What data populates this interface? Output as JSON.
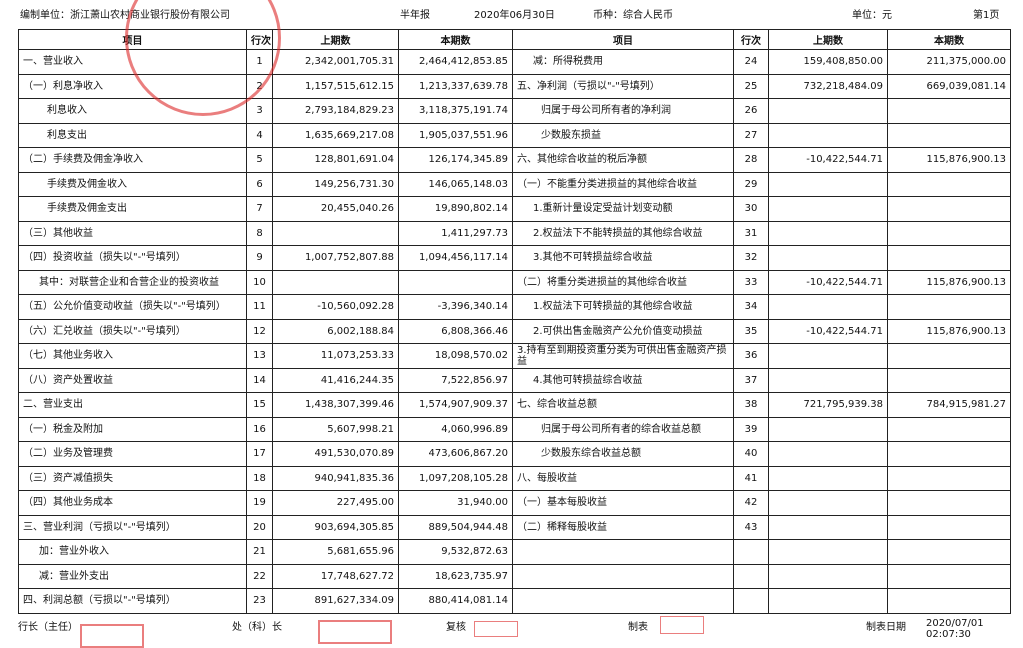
{
  "header": {
    "unit_name": "编制单位：浙江萧山农村商业银行股份有限公司",
    "report_type": "半年报",
    "date": "2020年06月30日",
    "currency": "币种：综合人民币",
    "unit": "单位：元",
    "page": "第1页"
  },
  "table": {
    "columns": [
      "项目",
      "行次",
      "上期数",
      "本期数"
    ],
    "left_rows": [
      {
        "item": "一、营业收入",
        "line": "1",
        "prev": "2,342,001,705.31",
        "curr": "2,464,412,853.85"
      },
      {
        "item": "（一）利息净收入",
        "line": "2",
        "prev": "1,157,515,612.15",
        "curr": "1,213,337,639.78"
      },
      {
        "item": "利息收入",
        "line": "3",
        "prev": "2,793,184,829.23",
        "curr": "3,118,375,191.74"
      },
      {
        "item": "利息支出",
        "line": "4",
        "prev": "1,635,669,217.08",
        "curr": "1,905,037,551.96"
      },
      {
        "item": "（二）手续费及佣金净收入",
        "line": "5",
        "prev": "128,801,691.04",
        "curr": "126,174,345.89"
      },
      {
        "item": "手续费及佣金收入",
        "line": "6",
        "prev": "149,256,731.30",
        "curr": "146,065,148.03"
      },
      {
        "item": "手续费及佣金支出",
        "line": "7",
        "prev": "20,455,040.26",
        "curr": "19,890,802.14"
      },
      {
        "item": "（三）其他收益",
        "line": "8",
        "curr": "1,411,297.73"
      },
      {
        "item": "（四）投资收益（损失以\"-\"号填列）",
        "line": "9",
        "prev": "1,007,752,807.88",
        "curr": "1,094,456,117.14"
      },
      {
        "item": "其中：对联营企业和合营企业的投资收益",
        "line": "10"
      },
      {
        "item": "（五）公允价值变动收益（损失以\"-\"号填列）",
        "line": "11",
        "prev": "-10,560,092.28",
        "curr": "-3,396,340.14"
      },
      {
        "item": "（六）汇兑收益（损失以\"-\"号填列）",
        "line": "12",
        "prev": "6,002,188.84",
        "curr": "6,808,366.46"
      },
      {
        "item": "（七）其他业务收入",
        "line": "13",
        "prev": "11,073,253.33",
        "curr": "18,098,570.02"
      },
      {
        "item": "（八）资产处置收益",
        "line": "14",
        "prev": "41,416,244.35",
        "curr": "7,522,856.97"
      },
      {
        "item": "二、营业支出",
        "line": "15",
        "prev": "1,438,307,399.46",
        "curr": "1,574,907,909.37"
      },
      {
        "item": "（一）税金及附加",
        "line": "16",
        "prev": "5,607,998.21",
        "curr": "4,060,996.89"
      },
      {
        "item": "（二）业务及管理费",
        "line": "17",
        "prev": "491,530,070.89",
        "curr": "473,606,867.20"
      },
      {
        "item": "（三）资产减值损失",
        "line": "18",
        "prev": "940,941,835.36",
        "curr": "1,097,208,105.28"
      },
      {
        "item": "（四）其他业务成本",
        "line": "19",
        "prev": "227,495.00",
        "curr": "31,940.00"
      },
      {
        "item": "三、营业利润（亏损以\"-\"号填列）",
        "line": "20",
        "prev": "903,694,305.85",
        "curr": "889,504,944.48"
      },
      {
        "item": "加：营业外收入",
        "line": "21",
        "prev": "5,681,655.96",
        "curr": "9,532,872.63"
      },
      {
        "item": "减：营业外支出",
        "line": "22",
        "prev": "17,748,627.72",
        "curr": "18,623,735.97"
      },
      {
        "item": "四、利润总额（亏损以\"-\"号填列）",
        "line": "23",
        "prev": "891,627,334.09",
        "curr": "880,414,081.14"
      }
    ],
    "right_rows": [
      {
        "item": "减：所得税费用",
        "line": "24",
        "prev": "159,408,850.00",
        "curr": "211,375,000.00"
      },
      {
        "item": "五、净利润（亏损以\"-\"号填列）",
        "line": "25",
        "prev": "732,218,484.09",
        "curr": "669,039,081.14"
      },
      {
        "item": "归属于母公司所有者的净利润",
        "line": "26"
      },
      {
        "item": "少数股东损益",
        "line": "27"
      },
      {
        "item": "六、其他综合收益的税后净额",
        "line": "28",
        "prev": "-10,422,544.71",
        "curr": "115,876,900.13"
      },
      {
        "item": "（一）不能重分类进损益的其他综合收益",
        "line": "29"
      },
      {
        "item": "1.重新计量设定受益计划变动额",
        "line": "30"
      },
      {
        "item": "2.权益法下不能转损益的其他综合收益",
        "line": "31"
      },
      {
        "item": "3.其他不可转损益综合收益",
        "line": "32"
      },
      {
        "item": "（二）将重分类进损益的其他综合收益",
        "line": "33",
        "prev": "-10,422,544.71",
        "curr": "115,876,900.13"
      },
      {
        "item": "1.权益法下可转损益的其他综合收益",
        "line": "34"
      },
      {
        "item": "2.可供出售金融资产公允价值变动损益",
        "line": "35",
        "prev": "-10,422,544.71",
        "curr": "115,876,900.13"
      },
      {
        "item": "3.持有至到期投资重分类为可供出售金融资产损益",
        "line": "36"
      },
      {
        "item": "4.其他可转损益综合收益",
        "line": "37"
      },
      {
        "item": "七、综合收益总额",
        "line": "38",
        "prev": "721,795,939.38",
        "curr": "784,915,981.27"
      },
      {
        "item": "归属于母公司所有者的综合收益总额",
        "line": "39"
      },
      {
        "item": "少数股东综合收益总额",
        "line": "40"
      },
      {
        "item": "八、每股收益",
        "line": "41"
      },
      {
        "item": "（一）基本每股收益",
        "line": "42"
      },
      {
        "item": "（二）稀释每股收益",
        "line": "43"
      }
    ]
  },
  "footer": {
    "president": "行长（主任）",
    "section_head": "处（科）长",
    "review": "复核",
    "prepared": "制表",
    "prepared_date": "制表日期",
    "datetime": "2020/07/01 02:07:30"
  }
}
